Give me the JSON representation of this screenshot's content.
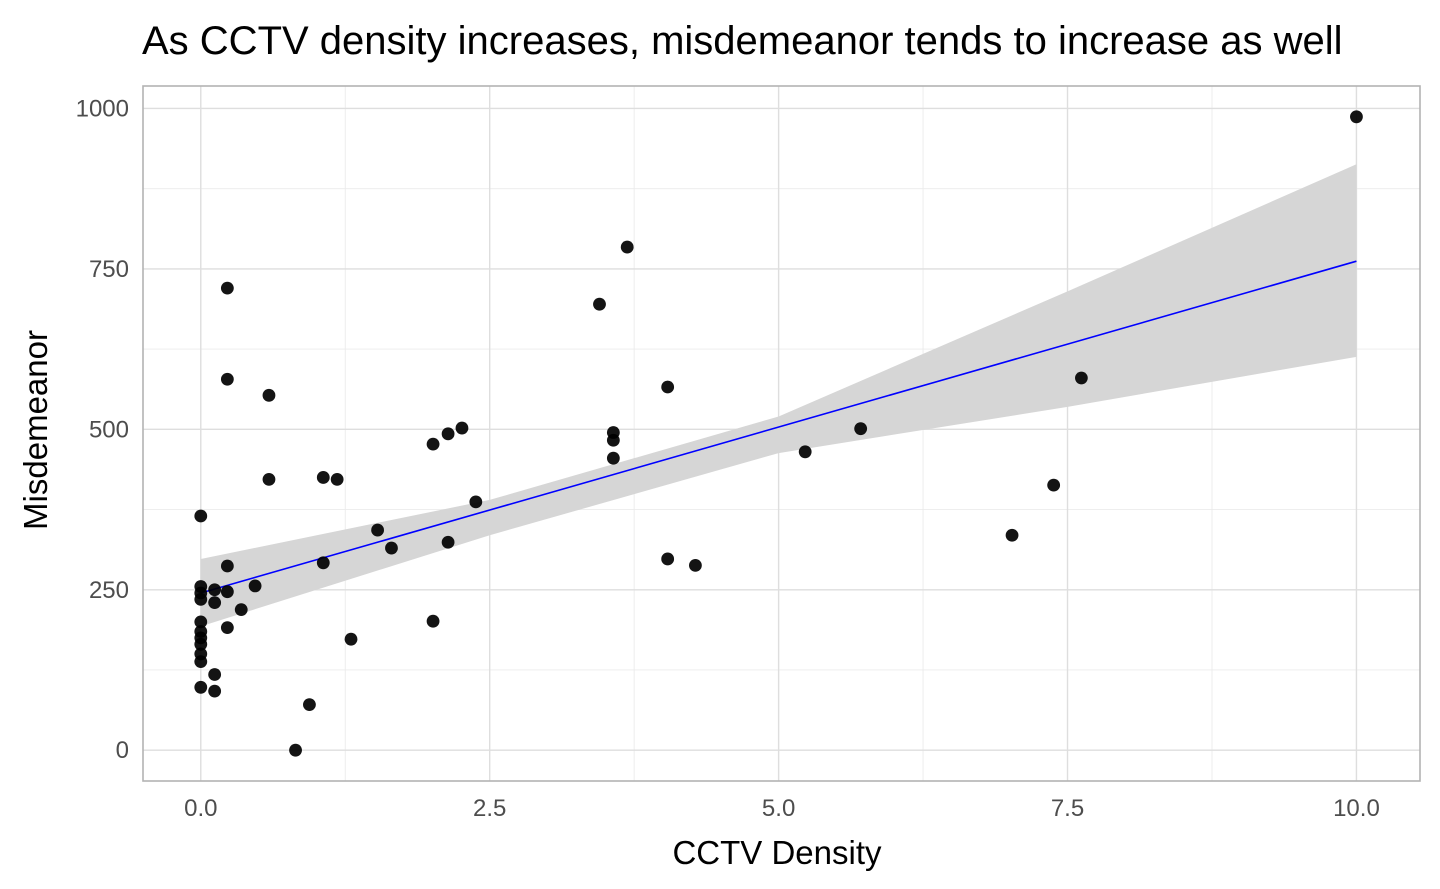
{
  "chart_data": {
    "type": "scatter",
    "title": "As CCTV density increases, misdemeanor tends to increase as well",
    "xlabel": "CCTV Density",
    "ylabel": "Misdemeanor",
    "xlim": [
      -0.5,
      10.55
    ],
    "ylim": [
      -48,
      1035
    ],
    "x_ticks": [
      0,
      2.5,
      5,
      7.5,
      10
    ],
    "x_tick_labels": [
      "0.0",
      "2.5",
      "5.0",
      "7.5",
      "10.0"
    ],
    "y_ticks": [
      0,
      250,
      500,
      750,
      1000
    ],
    "y_tick_labels": [
      "0",
      "250",
      "500",
      "750",
      "1000"
    ],
    "grid": true,
    "point_color": "#000000",
    "fit_line_color": "#0000ff",
    "confidence_band_color": "#d6d6d6",
    "points": [
      {
        "x": 0,
        "y": 365
      },
      {
        "x": 0,
        "y": 255
      },
      {
        "x": 0,
        "y": 245
      },
      {
        "x": 0,
        "y": 235
      },
      {
        "x": 0,
        "y": 200
      },
      {
        "x": 0,
        "y": 185
      },
      {
        "x": 0,
        "y": 175
      },
      {
        "x": 0,
        "y": 165
      },
      {
        "x": 0,
        "y": 150
      },
      {
        "x": 0,
        "y": 138
      },
      {
        "x": 0,
        "y": 98
      },
      {
        "x": 0.12,
        "y": 250
      },
      {
        "x": 0.12,
        "y": 230
      },
      {
        "x": 0.12,
        "y": 118
      },
      {
        "x": 0.12,
        "y": 92
      },
      {
        "x": 0.23,
        "y": 720
      },
      {
        "x": 0.23,
        "y": 578
      },
      {
        "x": 0.23,
        "y": 287
      },
      {
        "x": 0.23,
        "y": 247
      },
      {
        "x": 0.23,
        "y": 191
      },
      {
        "x": 0.35,
        "y": 219
      },
      {
        "x": 0.47,
        "y": 256
      },
      {
        "x": 0.59,
        "y": 553
      },
      {
        "x": 0.59,
        "y": 422
      },
      {
        "x": 0.82,
        "y": 0
      },
      {
        "x": 0.94,
        "y": 71
      },
      {
        "x": 1.06,
        "y": 425
      },
      {
        "x": 1.06,
        "y": 292
      },
      {
        "x": 1.18,
        "y": 422
      },
      {
        "x": 1.3,
        "y": 173
      },
      {
        "x": 1.53,
        "y": 343
      },
      {
        "x": 1.65,
        "y": 315
      },
      {
        "x": 2.01,
        "y": 477
      },
      {
        "x": 2.01,
        "y": 201
      },
      {
        "x": 2.14,
        "y": 493
      },
      {
        "x": 2.14,
        "y": 324
      },
      {
        "x": 2.26,
        "y": 502
      },
      {
        "x": 2.38,
        "y": 387
      },
      {
        "x": 3.45,
        "y": 695
      },
      {
        "x": 3.57,
        "y": 495
      },
      {
        "x": 3.57,
        "y": 483
      },
      {
        "x": 3.57,
        "y": 455
      },
      {
        "x": 3.69,
        "y": 784
      },
      {
        "x": 4.04,
        "y": 566
      },
      {
        "x": 4.04,
        "y": 298
      },
      {
        "x": 4.28,
        "y": 288
      },
      {
        "x": 5.23,
        "y": 465
      },
      {
        "x": 5.71,
        "y": 501
      },
      {
        "x": 7.02,
        "y": 335
      },
      {
        "x": 7.38,
        "y": 413
      },
      {
        "x": 7.62,
        "y": 580
      },
      {
        "x": 10.0,
        "y": 987
      }
    ],
    "fit": {
      "x": [
        0,
        10.0
      ],
      "y": [
        245,
        762
      ]
    },
    "confidence_band": {
      "x": [
        0,
        2.5,
        5,
        7.5,
        10.0
      ],
      "upper": [
        298,
        390,
        520,
        715,
        913
      ],
      "lower": [
        193,
        335,
        463,
        535,
        613
      ]
    }
  }
}
